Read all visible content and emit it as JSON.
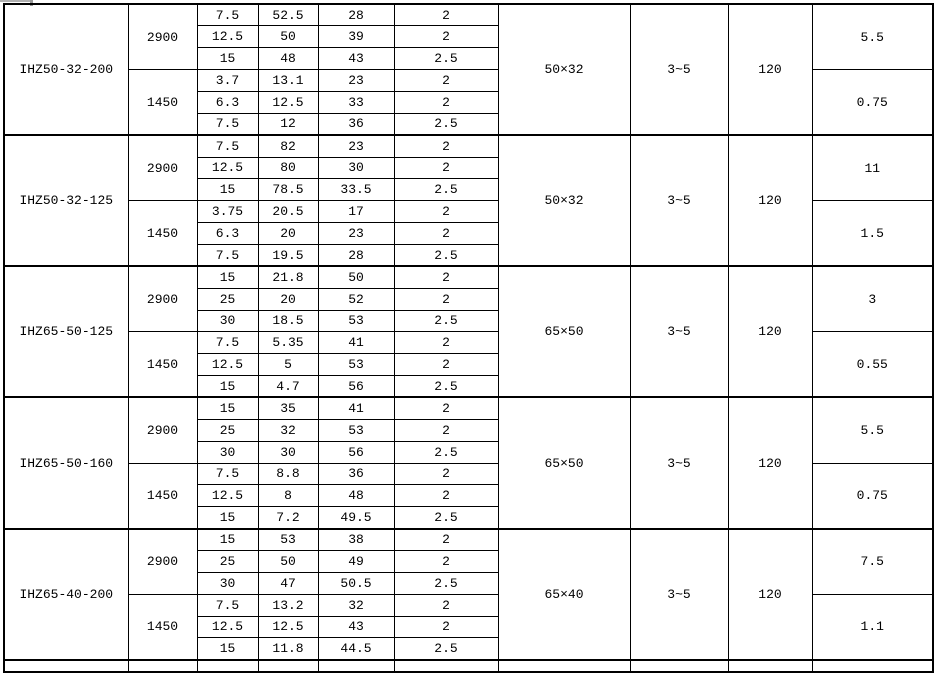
{
  "page": {
    "background": "#ffffff",
    "grid_color": "#000000",
    "text_color": "#000000",
    "artifact_color": "#b0b0b0"
  },
  "table": {
    "blocks": [
      {
        "model": "IHZ50-32-200",
        "ports": "50×32",
        "range": "3~5",
        "base": "120",
        "groups": [
          {
            "speed": "2900",
            "power": "5.5",
            "rows": [
              [
                "7.5",
                "52.5",
                "28",
                "2"
              ],
              [
                "12.5",
                "50",
                "39",
                "2"
              ],
              [
                "15",
                "48",
                "43",
                "2.5"
              ]
            ]
          },
          {
            "speed": "1450",
            "power": "0.75",
            "rows": [
              [
                "3.7",
                "13.1",
                "23",
                "2"
              ],
              [
                "6.3",
                "12.5",
                "33",
                "2"
              ],
              [
                "7.5",
                "12",
                "36",
                "2.5"
              ]
            ]
          }
        ]
      },
      {
        "model": "IHZ50-32-125",
        "ports": "50×32",
        "range": "3~5",
        "base": "120",
        "groups": [
          {
            "speed": "2900",
            "power": "11",
            "rows": [
              [
                "7.5",
                "82",
                "23",
                "2"
              ],
              [
                "12.5",
                "80",
                "30",
                "2"
              ],
              [
                "15",
                "78.5",
                "33.5",
                "2.5"
              ]
            ]
          },
          {
            "speed": "1450",
            "power": "1.5",
            "rows": [
              [
                "3.75",
                "20.5",
                "17",
                "2"
              ],
              [
                "6.3",
                "20",
                "23",
                "2"
              ],
              [
                "7.5",
                "19.5",
                "28",
                "2.5"
              ]
            ]
          }
        ]
      },
      {
        "model": "IHZ65-50-125",
        "ports": "65×50",
        "range": "3~5",
        "base": "120",
        "groups": [
          {
            "speed": "2900",
            "power": "3",
            "rows": [
              [
                "15",
                "21.8",
                "50",
                "2"
              ],
              [
                "25",
                "20",
                "52",
                "2"
              ],
              [
                "30",
                "18.5",
                "53",
                "2.5"
              ]
            ]
          },
          {
            "speed": "1450",
            "power": "0.55",
            "rows": [
              [
                "7.5",
                "5.35",
                "41",
                "2"
              ],
              [
                "12.5",
                "5",
                "53",
                "2"
              ],
              [
                "15",
                "4.7",
                "56",
                "2.5"
              ]
            ]
          }
        ]
      },
      {
        "model": "IHZ65-50-160",
        "ports": "65×50",
        "range": "3~5",
        "base": "120",
        "groups": [
          {
            "speed": "2900",
            "power": "5.5",
            "rows": [
              [
                "15",
                "35",
                "41",
                "2"
              ],
              [
                "25",
                "32",
                "53",
                "2"
              ],
              [
                "30",
                "30",
                "56",
                "2.5"
              ]
            ]
          },
          {
            "speed": "1450",
            "power": "0.75",
            "rows": [
              [
                "7.5",
                "8.8",
                "36",
                "2"
              ],
              [
                "12.5",
                "8",
                "48",
                "2"
              ],
              [
                "15",
                "7.2",
                "49.5",
                "2.5"
              ]
            ]
          }
        ]
      },
      {
        "model": "IHZ65-40-200",
        "ports": "65×40",
        "range": "3~5",
        "base": "120",
        "groups": [
          {
            "speed": "2900",
            "power": "7.5",
            "rows": [
              [
                "15",
                "53",
                "38",
                "2"
              ],
              [
                "25",
                "50",
                "49",
                "2"
              ],
              [
                "30",
                "47",
                "50.5",
                "2.5"
              ]
            ]
          },
          {
            "speed": "1450",
            "power": "1.1",
            "rows": [
              [
                "7.5",
                "13.2",
                "32",
                "2"
              ],
              [
                "12.5",
                "12.5",
                "43",
                "2"
              ],
              [
                "15",
                "11.8",
                "44.5",
                "2.5"
              ]
            ]
          }
        ]
      }
    ]
  }
}
